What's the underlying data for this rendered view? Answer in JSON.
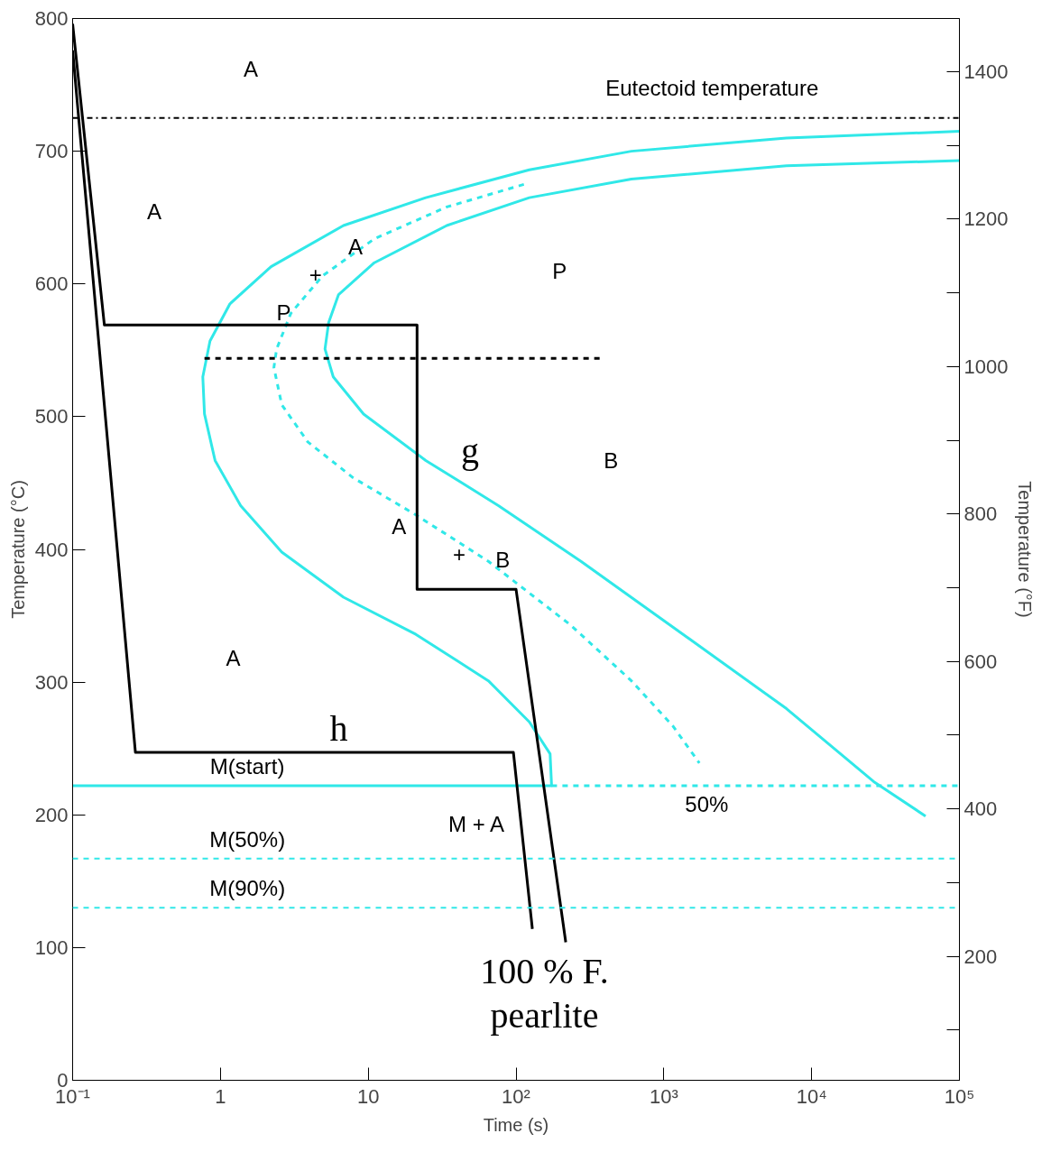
{
  "chart_data": {
    "type": "line",
    "xlabel": "Time (s)",
    "ylabel": "Temperature (°C)",
    "y2label": "Temperature (°F)",
    "log": "x",
    "grid": false,
    "xlim": [
      0.1,
      100000
    ],
    "xticks": [
      {
        "value": 0.1,
        "label": "10⁻¹"
      },
      1,
      10,
      {
        "value": 100,
        "label": "10²"
      },
      {
        "value": 1000,
        "label": "10³"
      },
      {
        "value": 10000,
        "label": "10⁴"
      },
      {
        "value": 100000,
        "label": "10⁵"
      }
    ],
    "ylim": [
      0,
      800
    ],
    "yticks": [
      0,
      100,
      200,
      300,
      400,
      500,
      600,
      700,
      800
    ],
    "y2lim": [
      32,
      1472
    ],
    "y2ticks": [
      {
        "value": 100,
        "label": null
      },
      200,
      {
        "value": 300,
        "label": null
      },
      400,
      {
        "value": 500,
        "label": null
      },
      600,
      {
        "value": 700,
        "label": null
      },
      800,
      {
        "value": 900,
        "label": null
      },
      1000,
      {
        "value": 1100,
        "label": null
      },
      1200,
      {
        "value": 1300,
        "label": null
      },
      1400
    ],
    "series": [
      {
        "color": "#30e8e8",
        "line_style": "solid",
        "x": [
          100000,
          6760,
          603,
          123,
          24.5,
          6.8,
          2.2,
          1.16,
          0.85,
          0.76,
          0.78,
          0.92,
          1.37,
          2.6,
          6.8,
          21,
          65,
          123,
          170,
          174,
          0.1
        ],
        "values": [
          715,
          710,
          700,
          686,
          665,
          644,
          613,
          585,
          557,
          530,
          502,
          467,
          433,
          398,
          364,
          336,
          301,
          270,
          246,
          222,
          222
        ]
      },
      {
        "color": "#30e8e8",
        "line_style": "dashed",
        "x": [
          113,
          34,
          11,
          4.9,
          3.0,
          2.4,
          2.3,
          2.6,
          3.9,
          7.9,
          21,
          65,
          234,
          603,
          1150,
          1740
        ],
        "values": [
          675,
          658,
          634,
          606,
          578,
          551,
          537,
          509,
          481,
          454,
          426,
          391,
          343,
          301,
          267,
          239
        ]
      },
      {
        "color": "#30e8e8",
        "line_style": "solid",
        "x": [
          100000,
          6760,
          603,
          123,
          34,
          11,
          6.3,
          5.4,
          5.1,
          5.8,
          9.3,
          24.5,
          76,
          275,
          1350,
          6760,
          26300,
          59000
        ],
        "values": [
          693,
          689,
          679,
          665,
          644,
          616,
          592,
          571,
          551,
          530,
          502,
          467,
          433,
          391,
          336,
          280,
          225,
          199
        ]
      },
      {
        "color": "#30e8e8",
        "line_style": "dashed",
        "x": [
          174,
          100000
        ],
        "values": [
          222,
          222
        ]
      },
      {
        "color": "#000000",
        "line_style": "dashed",
        "x": [
          0.78,
          370
        ],
        "values": [
          544,
          544
        ]
      },
      {
        "color": "#000000",
        "line_style": "solid",
        "x": [
          0.1,
          0.164,
          21.4,
          21.4,
          100,
          217
        ],
        "values": [
          796,
          569,
          569,
          370,
          370,
          104
        ]
      },
      {
        "color": "#000000",
        "line_style": "solid",
        "x": [
          0.1,
          0.266,
          96,
          129
        ],
        "values": [
          776,
          247,
          247,
          114
        ]
      }
    ],
    "ref_lines": [
      {
        "axis": "y",
        "value": 725,
        "color": "#000000",
        "line_style": "dashdot"
      },
      {
        "axis": "y",
        "value": 167,
        "color": "#30e8e8",
        "line_style": "dashed"
      },
      {
        "axis": "y",
        "value": 130,
        "color": "#30e8e8",
        "line_style": "dashed"
      }
    ],
    "annotations": [
      "Eutectoid temperature",
      "M(start)",
      "M(50%)",
      "M(90%)",
      "A",
      "A",
      "A",
      "+",
      "P",
      "P",
      "B",
      "A",
      "+",
      "B",
      "A",
      "M + A",
      "50%",
      "g",
      "h",
      "100 % F.\npearlite"
    ]
  }
}
